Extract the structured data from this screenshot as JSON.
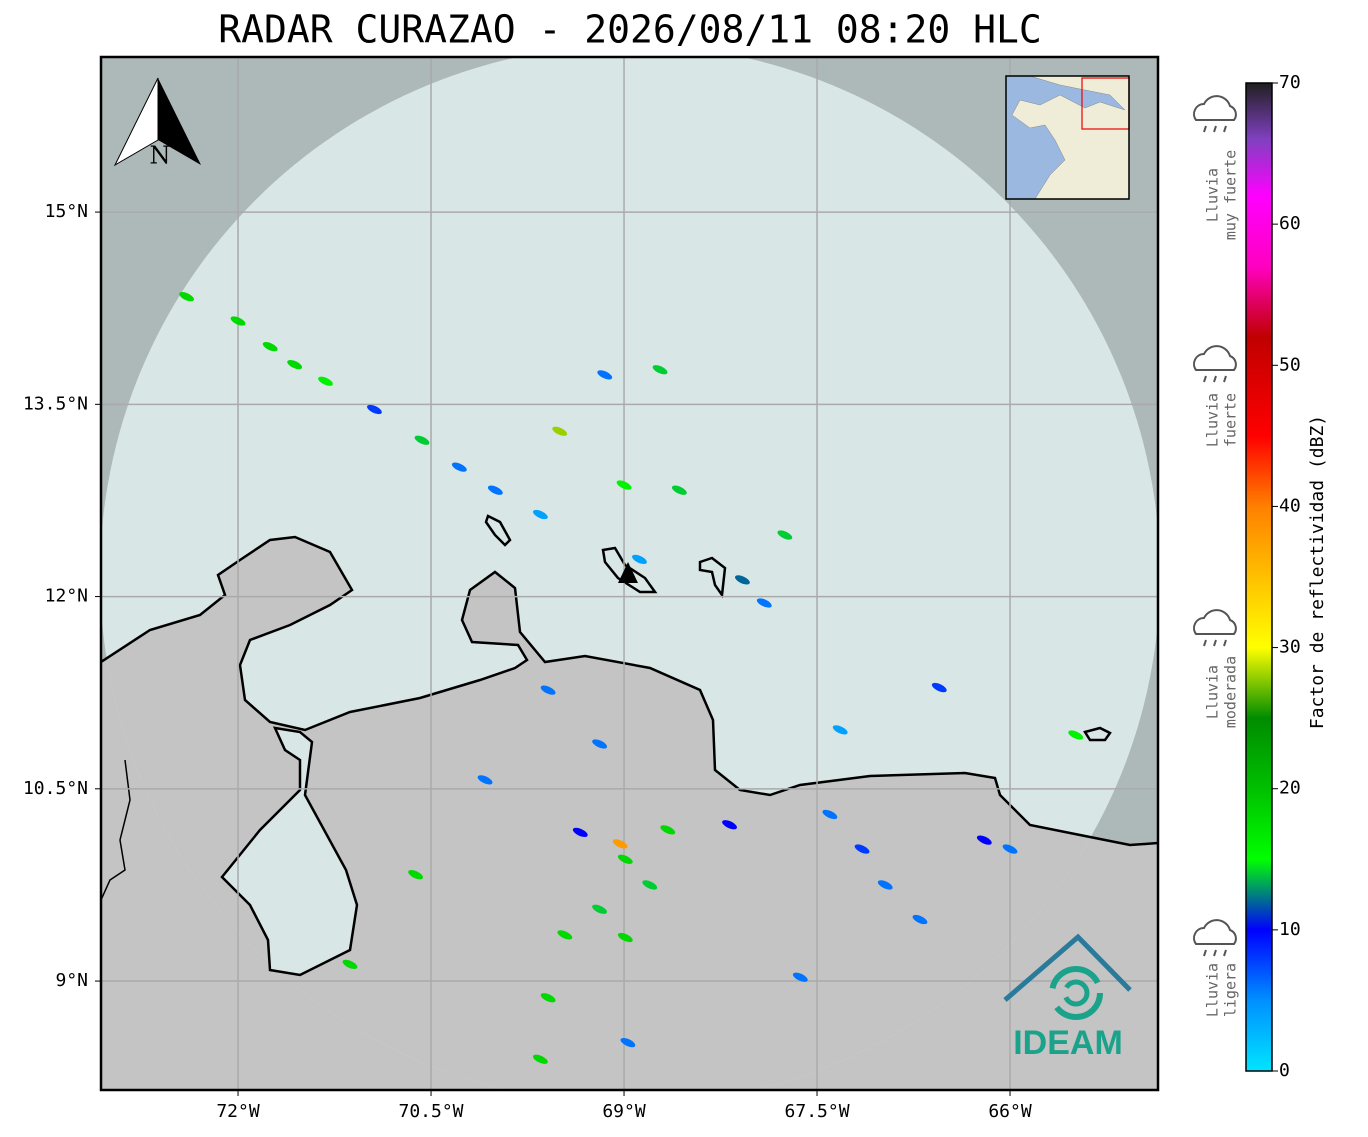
{
  "title": "RADAR CURAZAO - 2026/08/11 08:20 HLC",
  "map": {
    "lon_lim": [
      -73.065,
      -64.85
    ],
    "lat_lim": [
      8.15,
      16.21
    ],
    "lon_ticks": [
      {
        "value": -72,
        "label": "72°W"
      },
      {
        "value": -70.5,
        "label": "70.5°W"
      },
      {
        "value": -69,
        "label": "69°W"
      },
      {
        "value": -67.5,
        "label": "67.5°W"
      },
      {
        "value": -66,
        "label": "66°W"
      }
    ],
    "lat_ticks": [
      {
        "value": 15,
        "label": "15°N"
      },
      {
        "value": 13.5,
        "label": "13.5°N"
      },
      {
        "value": 12,
        "label": "12°N"
      },
      {
        "value": 10.5,
        "label": "10.5°N"
      },
      {
        "value": 9,
        "label": "9°N"
      }
    ],
    "grid": true,
    "compass": "N"
  },
  "echoes": [
    {
      "lon": -72.4,
      "lat": 14.34,
      "dbz": 18
    },
    {
      "lon": -72.0,
      "lat": 14.15,
      "dbz": 18
    },
    {
      "lon": -71.75,
      "lat": 13.95,
      "dbz": 18
    },
    {
      "lon": -71.56,
      "lat": 13.81,
      "dbz": 18
    },
    {
      "lon": -71.32,
      "lat": 13.68,
      "dbz": 16
    },
    {
      "lon": -70.94,
      "lat": 13.46,
      "dbz": 8
    },
    {
      "lon": -70.57,
      "lat": 13.22,
      "dbz": 14
    },
    {
      "lon": -70.28,
      "lat": 13.01,
      "dbz": 6
    },
    {
      "lon": -70.0,
      "lat": 12.83,
      "dbz": 6
    },
    {
      "lon": -69.65,
      "lat": 12.64,
      "dbz": 4
    },
    {
      "lon": -69.15,
      "lat": 13.73,
      "dbz": 6
    },
    {
      "lon": -68.72,
      "lat": 13.77,
      "dbz": 14
    },
    {
      "lon": -69.5,
      "lat": 13.29,
      "dbz": 28
    },
    {
      "lon": -69.0,
      "lat": 12.87,
      "dbz": 16
    },
    {
      "lon": -68.57,
      "lat": 12.83,
      "dbz": 14
    },
    {
      "lon": -68.88,
      "lat": 12.29,
      "dbz": 4
    },
    {
      "lon": -67.75,
      "lat": 12.48,
      "dbz": 14
    },
    {
      "lon": -68.08,
      "lat": 12.13,
      "dbz": 12
    },
    {
      "lon": -67.91,
      "lat": 11.95,
      "dbz": 6
    },
    {
      "lon": -66.55,
      "lat": 11.29,
      "dbz": 8
    },
    {
      "lon": -65.49,
      "lat": 10.92,
      "dbz": 16
    },
    {
      "lon": -69.59,
      "lat": 11.27,
      "dbz": 6
    },
    {
      "lon": -69.19,
      "lat": 10.85,
      "dbz": 6
    },
    {
      "lon": -70.08,
      "lat": 10.57,
      "dbz": 6
    },
    {
      "lon": -69.03,
      "lat": 10.07,
      "dbz": 38
    },
    {
      "lon": -68.99,
      "lat": 9.95,
      "dbz": 18
    },
    {
      "lon": -69.19,
      "lat": 9.56,
      "dbz": 14
    },
    {
      "lon": -68.99,
      "lat": 9.34,
      "dbz": 18
    },
    {
      "lon": -69.34,
      "lat": 10.16,
      "dbz": 10
    },
    {
      "lon": -68.8,
      "lat": 9.75,
      "dbz": 14
    },
    {
      "lon": -69.46,
      "lat": 9.36,
      "dbz": 18
    },
    {
      "lon": -69.59,
      "lat": 8.87,
      "dbz": 18
    },
    {
      "lon": -69.65,
      "lat": 8.39,
      "dbz": 18
    },
    {
      "lon": -67.15,
      "lat": 10.03,
      "dbz": 8
    },
    {
      "lon": -67.4,
      "lat": 10.3,
      "dbz": 6
    },
    {
      "lon": -66.2,
      "lat": 10.1,
      "dbz": 10
    },
    {
      "lon": -66.97,
      "lat": 9.75,
      "dbz": 6
    },
    {
      "lon": -66.7,
      "lat": 9.48,
      "dbz": 6
    },
    {
      "lon": -68.66,
      "lat": 10.18,
      "dbz": 18
    },
    {
      "lon": -68.18,
      "lat": 10.22,
      "dbz": 10
    },
    {
      "lon": -67.32,
      "lat": 10.96,
      "dbz": 4
    },
    {
      "lon": -66.0,
      "lat": 10.03,
      "dbz": 6
    },
    {
      "lon": -71.13,
      "lat": 9.13,
      "dbz": 18
    },
    {
      "lon": -70.62,
      "lat": 9.83,
      "dbz": 18
    },
    {
      "lon": -67.63,
      "lat": 9.03,
      "dbz": 6
    },
    {
      "lon": -68.97,
      "lat": 8.52,
      "dbz": 6
    }
  ],
  "colorbar": {
    "label": "Factor de reflectividad (dBZ)",
    "lim": [
      0,
      70
    ],
    "ticks": [
      0,
      10,
      20,
      30,
      40,
      50,
      60,
      70
    ],
    "colormap": [
      {
        "value": 0,
        "color": "#00e5ff"
      },
      {
        "value": 5,
        "color": "#0090ff"
      },
      {
        "value": 10,
        "color": "#0000ff"
      },
      {
        "value": 15,
        "color": "#00ff00"
      },
      {
        "value": 20,
        "color": "#00c000"
      },
      {
        "value": 25,
        "color": "#008c00"
      },
      {
        "value": 30,
        "color": "#ffff00"
      },
      {
        "value": 35,
        "color": "#ffc000"
      },
      {
        "value": 40,
        "color": "#ff8000"
      },
      {
        "value": 45,
        "color": "#ff0000"
      },
      {
        "value": 52,
        "color": "#c00000"
      },
      {
        "value": 57,
        "color": "#ff00c0"
      },
      {
        "value": 62,
        "color": "#ff00ff"
      },
      {
        "value": 66,
        "color": "#8040c0"
      },
      {
        "value": 70,
        "color": "#202020"
      }
    ]
  },
  "rain_levels": [
    {
      "lines": [
        "Lluvia",
        "muy fuerte"
      ]
    },
    {
      "lines": [
        "Lluvia",
        "fuerte"
      ]
    },
    {
      "lines": [
        "Lluvia",
        "moderada"
      ]
    },
    {
      "lines": [
        "Lluvia",
        "ligera"
      ]
    }
  ],
  "logo": "IDEAM"
}
